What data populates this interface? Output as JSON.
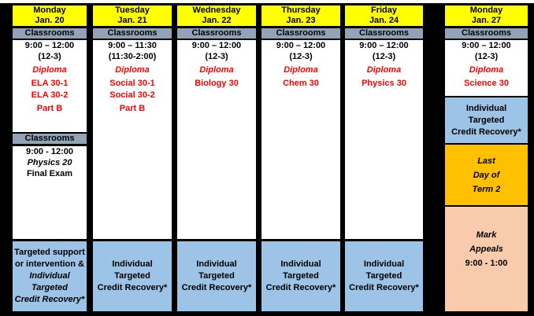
{
  "colors": {
    "header_yellow": "#FFFF00",
    "classrooms_gray": "#92A3B8",
    "recovery_blue": "#9DC3E6",
    "term_orange": "#FFC000",
    "appeals_peach": "#F8CBAD",
    "exam_red": "#FF0000",
    "grid_black": "#000000"
  },
  "columns": [
    {
      "day": "Monday",
      "date": "Jan. 20",
      "classrooms": "Classrooms",
      "time": "9:00 – 12:00",
      "alt_time": "(12-3)",
      "exam_type": "Diploma",
      "courses": [
        "ELA 30-1",
        "ELA 30-2",
        "Part B"
      ],
      "second_section": {
        "classrooms": "Classrooms",
        "time": "9:00 - 12:00",
        "course": "Physics 20",
        "note": "Final Exam"
      },
      "footer": {
        "plain": [
          "Targeted support",
          "or intervention &"
        ],
        "italic": [
          "Individual",
          "Targeted",
          "Credit Recovery*"
        ]
      }
    },
    {
      "day": "Tuesday",
      "date": "Jan. 21",
      "classrooms": "Classrooms",
      "time": "9:00 – 11:30",
      "alt_time": "(11:30-2:00)",
      "exam_type": "Diploma",
      "courses": [
        "Social 30-1",
        "Social 30-2",
        "Part B"
      ],
      "footer": {
        "lines": [
          "Individual",
          "Targeted",
          "Credit Recovery*"
        ]
      }
    },
    {
      "day": "Wednesday",
      "date": "Jan. 22",
      "classrooms": "Classrooms",
      "time": "9:00 – 12:00",
      "alt_time": "(12-3)",
      "exam_type": "Diploma",
      "courses": [
        "Biology 30"
      ],
      "footer": {
        "lines": [
          "Individual",
          "Targeted",
          "Credit Recovery*"
        ]
      }
    },
    {
      "day": "Thursday",
      "date": "Jan. 23",
      "classrooms": "Classrooms",
      "time": "9:00 – 12:00",
      "alt_time": "(12-3)",
      "exam_type": "Diploma",
      "courses": [
        "Chem 30"
      ],
      "footer": {
        "lines": [
          "Individual",
          "Targeted",
          "Credit Recovery*"
        ]
      }
    },
    {
      "day": "Friday",
      "date": "Jan. 24",
      "classrooms": "Classrooms",
      "time": "9:00 – 12:00",
      "alt_time": "(12-3)",
      "exam_type": "Diploma",
      "courses": [
        "Physics 30"
      ],
      "footer": {
        "lines": [
          "Individual",
          "Targeted",
          "Credit Recovery*"
        ]
      }
    },
    {
      "day": "Monday",
      "date": "Jan. 27",
      "classrooms": "Classrooms",
      "time": "9:00 – 12:00",
      "alt_time": "(12-3)",
      "exam_type": "Diploma",
      "courses": [
        "Science 30"
      ],
      "footer": {
        "lines": [
          "Individual",
          "Targeted",
          "Credit Recovery*"
        ]
      },
      "last_day": {
        "lines": [
          "Last",
          "Day of",
          "Term 2"
        ]
      },
      "mark_appeals": {
        "lines": [
          "Mark",
          "Appeals"
        ],
        "time": "9:00 - 1:00"
      }
    }
  ]
}
